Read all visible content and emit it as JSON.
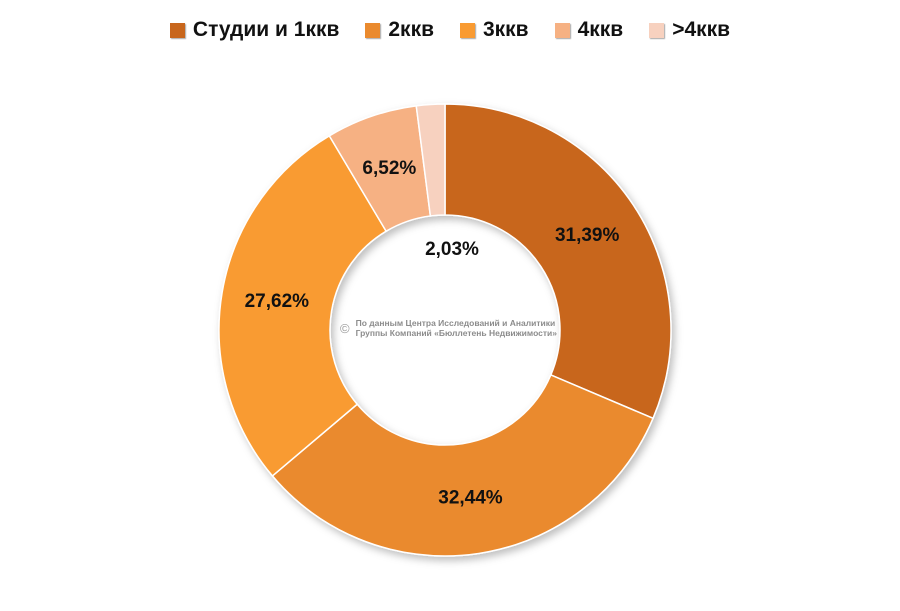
{
  "chart_data": {
    "type": "pie",
    "donut": true,
    "categories": [
      "Студии и 1ккв",
      "2ккв",
      "3ккв",
      "4ккв",
      ">4ккв"
    ],
    "values": [
      31.39,
      32.44,
      27.62,
      6.52,
      2.03
    ],
    "labels": [
      "31,39%",
      "32,44%",
      "27,62%",
      "6,52%",
      "2,03%"
    ],
    "colors": [
      "#c8661c",
      "#ea8a2e",
      "#f99b32",
      "#f6b183",
      "#f7d1bf"
    ],
    "legend_position": "top",
    "watermark": {
      "symbol": "©",
      "line1": "По данным Центра Исследований и Аналитики",
      "line2": "Группы Компаний «Бюллетень Недвижимости»"
    }
  }
}
